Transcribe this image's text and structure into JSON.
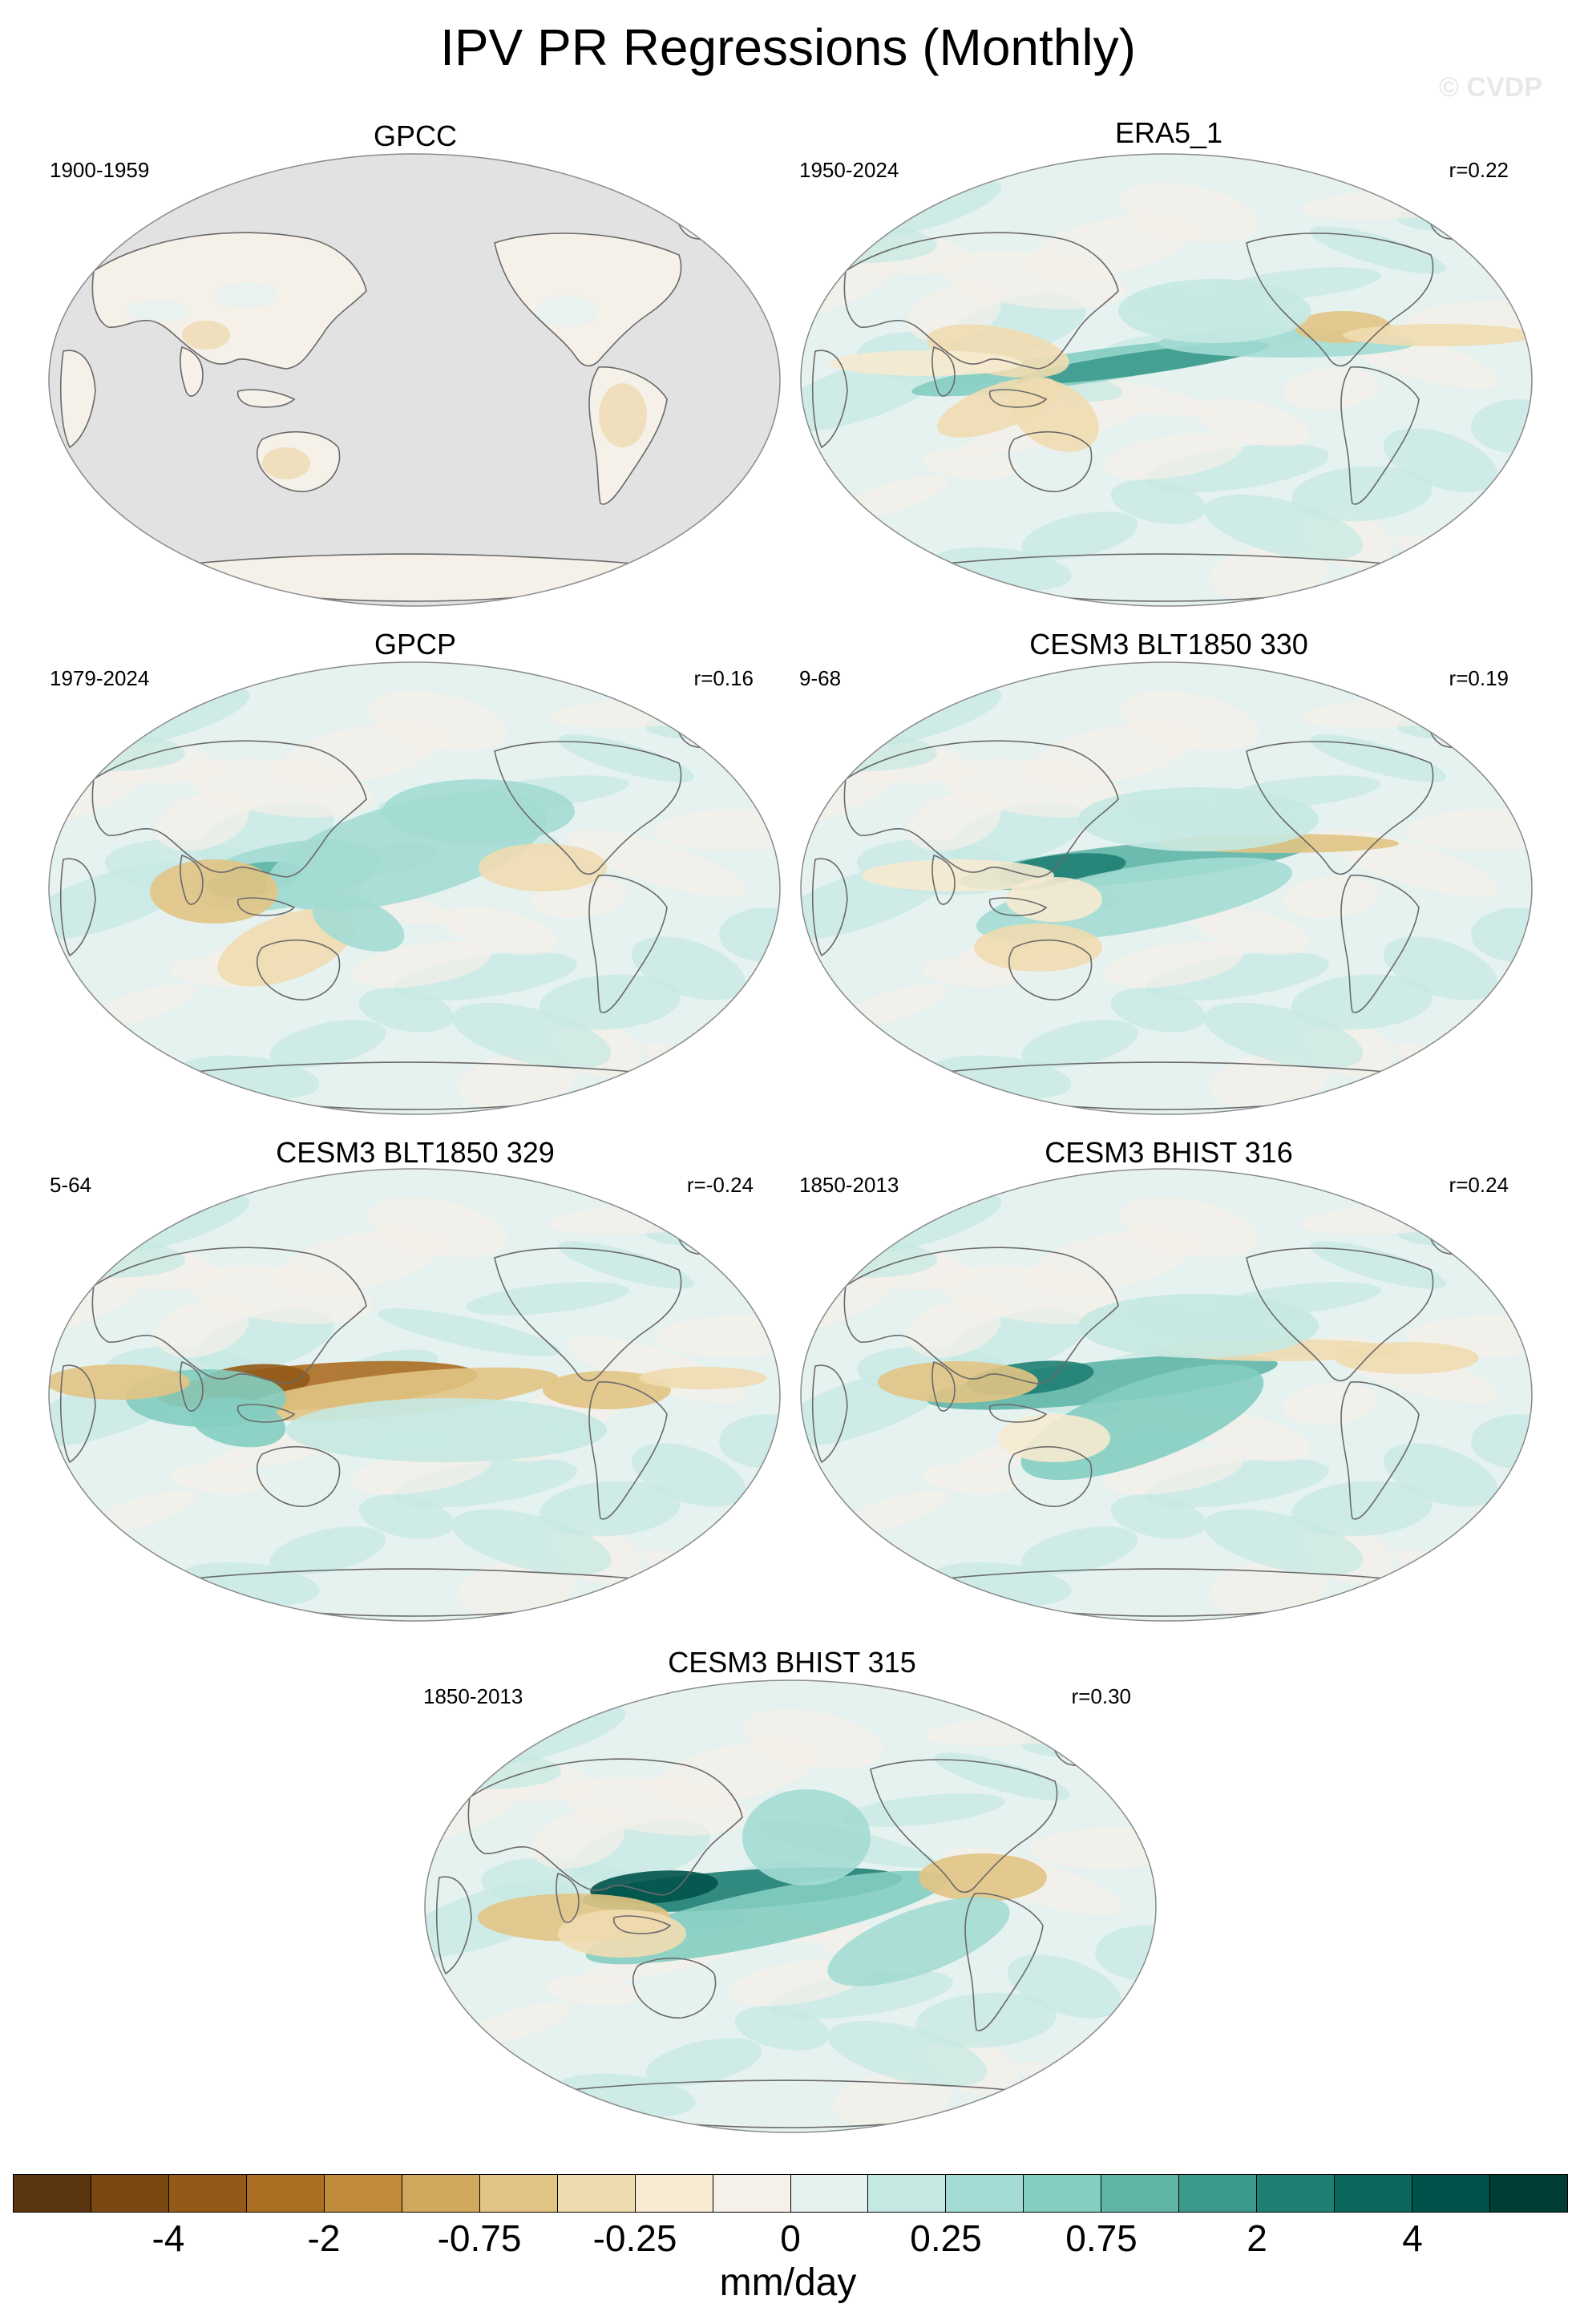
{
  "title": "IPV PR Regressions (Monthly)",
  "copyright": "© CVDP",
  "colors": {
    "land_mask": "#e2e2e2",
    "coast": "#6a6a6a",
    "palette": [
      "#5b3510",
      "#7b4812",
      "#935a17",
      "#ab6e22",
      "#c08c3c",
      "#d1a95c",
      "#e2c484",
      "#efdbb0",
      "#f6ead0",
      "#f5f0e8",
      "#e6f2f0",
      "#c5e8e2",
      "#a3dbd4",
      "#84cdc1",
      "#5fb6a7",
      "#3c9a8d",
      "#1f7f73",
      "#0b675c",
      "#00534a",
      "#003d35"
    ]
  },
  "panels": [
    {
      "title": "GPCC",
      "period": "1900-1959",
      "corr": "",
      "map_type": "land-only"
    },
    {
      "title": "ERA5_1",
      "period": "1950-2024",
      "corr": "r=0.22",
      "map_type": "global"
    },
    {
      "title": "GPCP",
      "period": "1979-2024",
      "corr": "r=0.16",
      "map_type": "global"
    },
    {
      "title": "CESM3 BLT1850 330",
      "period": "9-68",
      "corr": "r=0.19",
      "map_type": "global"
    },
    {
      "title": "CESM3 BLT1850 329",
      "period": "5-64",
      "corr": "r=-0.24",
      "map_type": "global"
    },
    {
      "title": "CESM3 BHIST 316",
      "period": "1850-2013",
      "corr": "r=0.24",
      "map_type": "global"
    },
    {
      "title": "CESM3 BHIST 315",
      "period": "1850-2013",
      "corr": "r=0.30",
      "map_type": "global"
    }
  ],
  "colorbar": {
    "labels": [
      "-4",
      "-2",
      "-0.75",
      "-0.25",
      "0",
      "0.25",
      "0.75",
      "2",
      "4"
    ],
    "units": "mm/day"
  }
}
